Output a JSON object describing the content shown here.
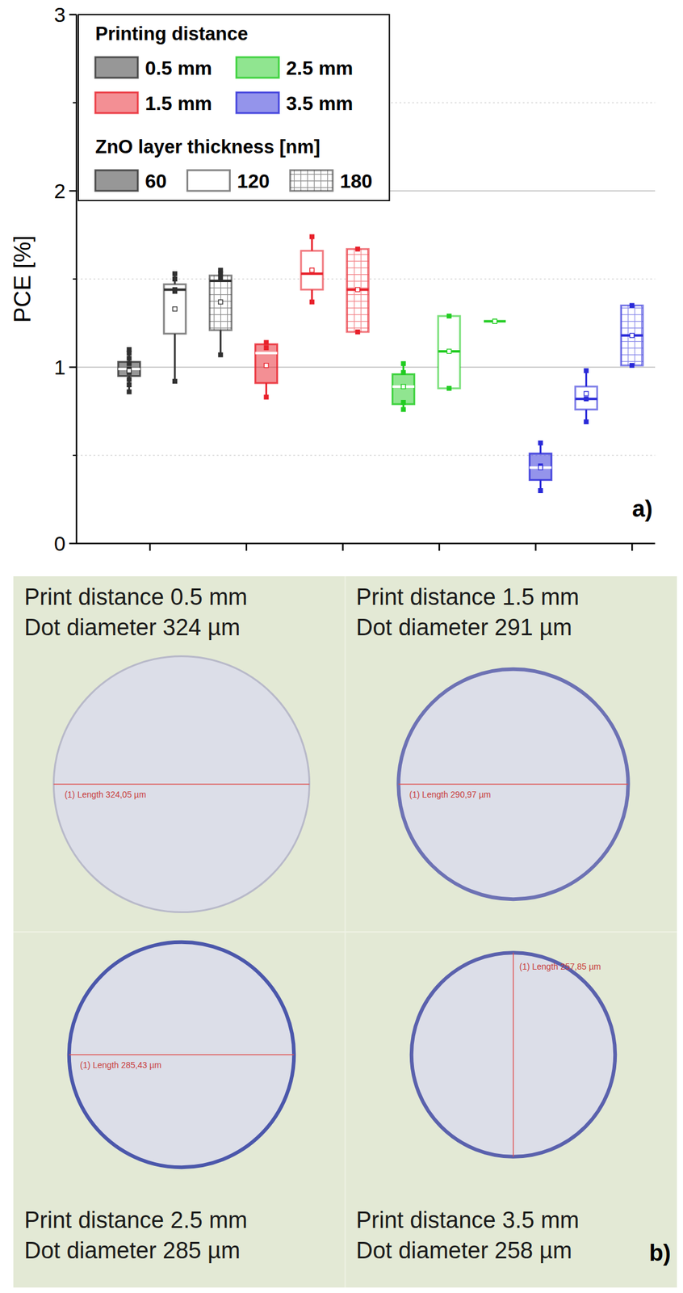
{
  "chart_data": [
    {
      "type": "box",
      "ylabel": "PCE [%]",
      "ylim": [
        0,
        3
      ],
      "yticks": [
        0,
        1,
        2,
        3
      ],
      "grid": true,
      "tick_labels": "y",
      "legend": "upper left",
      "legend_title": "Printing distance",
      "group_title": "ZnO layer thickness [nm]",
      "groups": [
        "60",
        "120",
        "180"
      ],
      "panel_label": "a)",
      "series": [
        {
          "name": "0.5 mm",
          "color": "#303030",
          "boxes": [
            {
              "min": 0.86,
              "q1": 0.95,
              "median": 0.99,
              "q3": 1.03,
              "max": 1.1,
              "mean": 0.98,
              "points": [
                1.1,
                1.08,
                1.05,
                1.02,
                0.99,
                0.97,
                0.93,
                0.9,
                0.86
              ]
            },
            {
              "min": 0.92,
              "q1": 1.19,
              "median": 1.44,
              "q3": 1.47,
              "max": 1.53,
              "mean": 1.33,
              "points": [
                1.53,
                1.5,
                1.44,
                1.43,
                0.92
              ]
            },
            {
              "min": 1.07,
              "q1": 1.21,
              "median": 1.49,
              "q3": 1.52,
              "max": 1.55,
              "mean": 1.37,
              "points": [
                1.55,
                1.53,
                1.51,
                1.07
              ]
            }
          ]
        },
        {
          "name": "1.5 mm",
          "color": "#e8202a",
          "boxes": [
            {
              "min": 0.83,
              "q1": 0.91,
              "median": 1.08,
              "q3": 1.13,
              "max": 1.14,
              "mean": 1.01,
              "points": [
                1.14,
                1.11,
                0.83
              ]
            },
            {
              "min": 1.37,
              "q1": 1.44,
              "median": 1.53,
              "q3": 1.66,
              "max": 1.74,
              "mean": 1.55,
              "points": [
                1.74,
                1.55,
                1.37
              ]
            },
            {
              "min": 1.2,
              "q1": 1.2,
              "median": 1.44,
              "q3": 1.67,
              "max": 1.67,
              "mean": 1.44,
              "points": [
                1.67,
                1.2
              ]
            }
          ]
        },
        {
          "name": "2.5 mm",
          "color": "#22cc22",
          "boxes": [
            {
              "min": 0.76,
              "q1": 0.79,
              "median": 0.89,
              "q3": 0.96,
              "max": 1.02,
              "mean": 0.89,
              "points": [
                1.02,
                0.97,
                0.89,
                0.8,
                0.76
              ]
            },
            {
              "min": 0.88,
              "q1": 0.88,
              "median": 1.09,
              "q3": 1.29,
              "max": 1.29,
              "mean": 1.09,
              "points": [
                1.29,
                0.88
              ]
            },
            {
              "min": 1.26,
              "q1": 1.26,
              "median": 1.26,
              "q3": 1.26,
              "max": 1.26,
              "mean": 1.26,
              "points": [
                1.26,
                1.26
              ]
            }
          ]
        },
        {
          "name": "3.5 mm",
          "color": "#2a2ad8",
          "boxes": [
            {
              "min": 0.3,
              "q1": 0.36,
              "median": 0.43,
              "q3": 0.51,
              "max": 0.57,
              "mean": 0.43,
              "points": [
                0.57,
                0.44,
                0.3
              ]
            },
            {
              "min": 0.69,
              "q1": 0.76,
              "median": 0.82,
              "q3": 0.89,
              "max": 0.98,
              "mean": 0.85,
              "points": [
                0.98,
                0.82,
                0.69
              ]
            },
            {
              "min": 1.01,
              "q1": 1.01,
              "median": 1.18,
              "q3": 1.35,
              "max": 1.35,
              "mean": 1.18,
              "points": [
                1.35,
                1.01
              ]
            }
          ]
        }
      ]
    },
    {
      "type": "micrograph",
      "panel_label": "b)",
      "items": [
        {
          "title": "Print distance 0.5 mm",
          "subtitle": "Dot diameter 324 µm",
          "diameter": 324,
          "measure_label": "(1) Length 324,05 µm"
        },
        {
          "title": "Print distance 1.5 mm",
          "subtitle": "Dot diameter 291 µm",
          "diameter": 291,
          "measure_label": "(1) Length 290,97 µm"
        },
        {
          "title": "Print distance 2.5 mm",
          "subtitle": "Dot diameter 285 µm",
          "diameter": 285,
          "measure_label": "(1) Length 285,43 µm"
        },
        {
          "title": "Print distance 3.5 mm",
          "subtitle": "Dot diameter 258 µm",
          "diameter": 258,
          "measure_label": "(1) Length 257,85 µm"
        }
      ]
    }
  ]
}
